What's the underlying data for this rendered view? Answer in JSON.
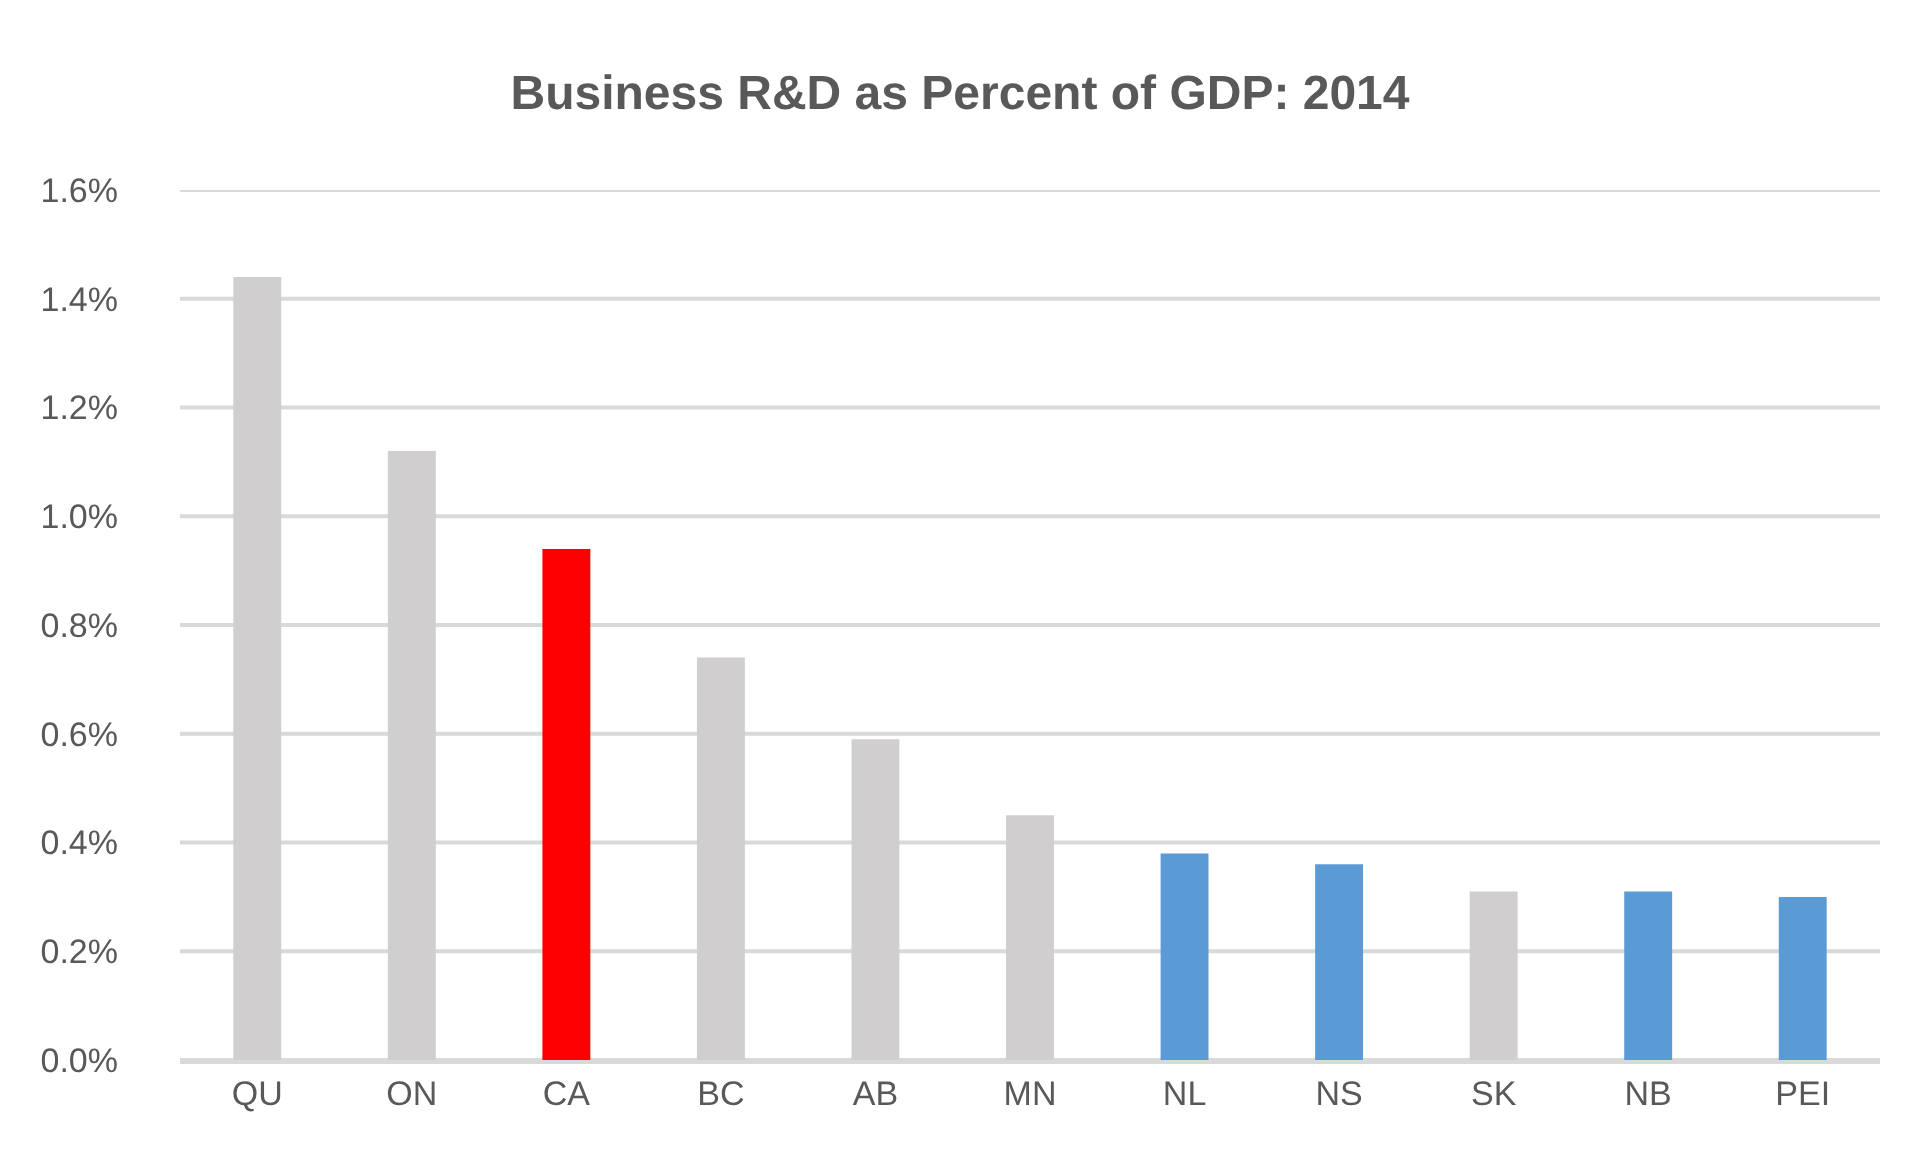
{
  "chart_data": {
    "type": "bar",
    "title": "Business R&D as Percent of GDP: 2014",
    "categories": [
      "QU",
      "ON",
      "CA",
      "BC",
      "AB",
      "MN",
      "NL",
      "NS",
      "SK",
      "NB",
      "PEI"
    ],
    "values": [
      1.44,
      1.12,
      0.94,
      0.74,
      0.59,
      0.45,
      0.38,
      0.36,
      0.31,
      0.31,
      0.3
    ],
    "colors": [
      "#d0cece",
      "#d0cece",
      "#ff0000",
      "#d0cece",
      "#d0cece",
      "#d0cece",
      "#5b9bd5",
      "#5b9bd5",
      "#d0cece",
      "#5b9bd5",
      "#5b9bd5"
    ],
    "ylim": [
      0,
      1.6
    ],
    "yticks": [
      {
        "value": 0,
        "label": "0.0%"
      },
      {
        "value": 0.2,
        "label": "0.2%"
      },
      {
        "value": 0.4,
        "label": "0.4%"
      },
      {
        "value": 0.6,
        "label": "0.6%"
      },
      {
        "value": 0.8,
        "label": "0.8%"
      },
      {
        "value": 1.0,
        "label": "1.0%"
      },
      {
        "value": 1.2,
        "label": "1.2%"
      },
      {
        "value": 1.4,
        "label": "1.4%"
      },
      {
        "value": 1.6,
        "label": "1.6%"
      }
    ],
    "grid": "y"
  }
}
